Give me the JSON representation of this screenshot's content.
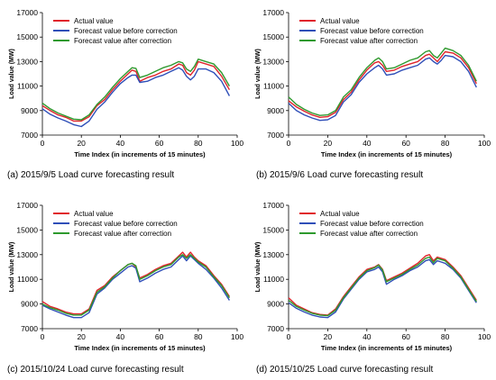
{
  "colors": {
    "actual": "#e0242b",
    "before": "#2f4fb8",
    "after": "#2e9a2e",
    "axis": "#000000"
  },
  "chart_data": [
    {
      "type": "line",
      "caption": "(a)  2015/9/5 Load curve forecasting result",
      "xlabel": "Time Index (in increments of 15 minutes)",
      "ylabel": "Load value (MW)",
      "xlim": [
        0,
        100
      ],
      "ylim": [
        7000,
        17000
      ],
      "xticks": [
        "0",
        "20",
        "40",
        "60",
        "80",
        "100"
      ],
      "yticks": [
        "7000",
        "9000",
        "11000",
        "13000",
        "15000",
        "17000"
      ],
      "legend": "top-left",
      "series": [
        {
          "name": "Actual value",
          "x": [
            0,
            4,
            8,
            12,
            16,
            20,
            24,
            28,
            32,
            36,
            40,
            44,
            46,
            48,
            50,
            54,
            58,
            62,
            66,
            70,
            72,
            74,
            76,
            78,
            80,
            84,
            88,
            92,
            96
          ],
          "y": [
            9400,
            9000,
            8650,
            8450,
            8150,
            8150,
            8500,
            9400,
            9900,
            10700,
            11400,
            12000,
            12300,
            12200,
            11400,
            11700,
            11900,
            12200,
            12400,
            12800,
            12700,
            12100,
            11900,
            12300,
            13000,
            12800,
            12600,
            11800,
            10700
          ]
        },
        {
          "name": "Forecast value before correction",
          "x": [
            0,
            4,
            8,
            12,
            16,
            20,
            24,
            28,
            32,
            36,
            40,
            44,
            46,
            48,
            50,
            54,
            58,
            62,
            66,
            70,
            72,
            74,
            76,
            78,
            80,
            84,
            88,
            92,
            96
          ],
          "y": [
            9150,
            8700,
            8400,
            8150,
            7850,
            7700,
            8150,
            9100,
            9700,
            10500,
            11200,
            11700,
            11900,
            11900,
            11300,
            11400,
            11700,
            11900,
            12200,
            12500,
            12300,
            11800,
            11500,
            11800,
            12400,
            12400,
            12100,
            11400,
            10200
          ]
        },
        {
          "name": "Forecast value after correction",
          "x": [
            0,
            4,
            8,
            12,
            16,
            20,
            24,
            28,
            32,
            36,
            40,
            44,
            46,
            48,
            50,
            54,
            58,
            62,
            66,
            70,
            72,
            74,
            76,
            78,
            80,
            84,
            88,
            92,
            96
          ],
          "y": [
            9600,
            9150,
            8800,
            8550,
            8300,
            8250,
            8650,
            9500,
            10100,
            10900,
            11600,
            12200,
            12500,
            12450,
            11700,
            11900,
            12200,
            12500,
            12700,
            13000,
            12900,
            12400,
            12200,
            12600,
            13200,
            13000,
            12800,
            12100,
            11000
          ]
        }
      ]
    },
    {
      "type": "line",
      "caption": "(b)  2015/9/6 Load curve forecasting result",
      "xlabel": "Time Index (in increments of 15 minutes)",
      "ylabel": "Load value (MW)",
      "xlim": [
        0,
        100
      ],
      "ylim": [
        7000,
        17000
      ],
      "xticks": [
        "0",
        "20",
        "40",
        "60",
        "80",
        "100"
      ],
      "yticks": [
        "7000",
        "9000",
        "11000",
        "13000",
        "15000",
        "17000"
      ],
      "legend": "top-left",
      "series": [
        {
          "name": "Actual value",
          "x": [
            0,
            4,
            8,
            12,
            16,
            20,
            24,
            28,
            32,
            36,
            40,
            44,
            46,
            48,
            50,
            54,
            58,
            62,
            66,
            70,
            72,
            74,
            76,
            78,
            80,
            84,
            88,
            92,
            96
          ],
          "y": [
            9800,
            9300,
            8950,
            8650,
            8450,
            8500,
            8850,
            9900,
            10500,
            11500,
            12300,
            12900,
            13000,
            12700,
            12200,
            12300,
            12600,
            12800,
            13000,
            13500,
            13600,
            13300,
            13000,
            13400,
            13800,
            13700,
            13300,
            12500,
            11200
          ]
        },
        {
          "name": "Forecast value before correction",
          "x": [
            0,
            4,
            8,
            12,
            16,
            20,
            24,
            28,
            32,
            36,
            40,
            44,
            46,
            48,
            50,
            54,
            58,
            62,
            66,
            70,
            72,
            74,
            76,
            78,
            80,
            84,
            88,
            92,
            96
          ],
          "y": [
            9600,
            9000,
            8650,
            8400,
            8200,
            8250,
            8600,
            9700,
            10300,
            11300,
            12000,
            12500,
            12700,
            12400,
            11900,
            12000,
            12300,
            12500,
            12700,
            13200,
            13300,
            13000,
            12800,
            13100,
            13500,
            13400,
            13000,
            12200,
            10900
          ]
        },
        {
          "name": "Forecast value after correction",
          "x": [
            0,
            4,
            8,
            12,
            16,
            20,
            24,
            28,
            32,
            36,
            40,
            44,
            46,
            48,
            50,
            54,
            58,
            62,
            66,
            70,
            72,
            74,
            76,
            78,
            80,
            84,
            88,
            92,
            96
          ],
          "y": [
            10100,
            9500,
            9100,
            8800,
            8600,
            8650,
            9000,
            10100,
            10700,
            11700,
            12500,
            13100,
            13300,
            13000,
            12400,
            12500,
            12800,
            13100,
            13300,
            13800,
            13900,
            13500,
            13300,
            13700,
            14100,
            13900,
            13500,
            12700,
            11400
          ]
        }
      ]
    },
    {
      "type": "line",
      "caption": "(c)  2015/10/24 Load curve forecasting result",
      "xlabel": "Time Index (in increments of 15 minutes)",
      "ylabel": "Load value (MW)",
      "xlim": [
        0,
        100
      ],
      "ylim": [
        7000,
        17000
      ],
      "xticks": [
        "0",
        "20",
        "40",
        "60",
        "80",
        "100"
      ],
      "yticks": [
        "7000",
        "9000",
        "11000",
        "13000",
        "15000",
        "17000"
      ],
      "legend": "top-left",
      "series": [
        {
          "name": "Actual value",
          "x": [
            0,
            4,
            8,
            12,
            16,
            20,
            24,
            28,
            32,
            36,
            40,
            44,
            46,
            48,
            50,
            54,
            58,
            62,
            66,
            70,
            72,
            74,
            76,
            78,
            80,
            84,
            88,
            92,
            96
          ],
          "y": [
            9200,
            8800,
            8600,
            8350,
            8200,
            8200,
            8600,
            10100,
            10500,
            11200,
            11700,
            12200,
            12300,
            12000,
            11100,
            11400,
            11800,
            12100,
            12300,
            12900,
            13200,
            12800,
            13200,
            12800,
            12500,
            12100,
            11300,
            10600,
            9600
          ]
        },
        {
          "name": "Forecast value before correction",
          "x": [
            0,
            4,
            8,
            12,
            16,
            20,
            24,
            28,
            32,
            36,
            40,
            44,
            46,
            48,
            50,
            54,
            58,
            62,
            66,
            70,
            72,
            74,
            76,
            78,
            80,
            84,
            88,
            92,
            96
          ],
          "y": [
            8900,
            8600,
            8350,
            8100,
            7900,
            7900,
            8300,
            9800,
            10300,
            11000,
            11500,
            12000,
            12100,
            11900,
            10800,
            11100,
            11500,
            11800,
            12000,
            12600,
            12900,
            12500,
            12900,
            12600,
            12300,
            11800,
            11100,
            10300,
            9300
          ]
        },
        {
          "name": "Forecast value after correction",
          "x": [
            0,
            4,
            8,
            12,
            16,
            20,
            24,
            28,
            32,
            36,
            40,
            44,
            46,
            48,
            50,
            54,
            58,
            62,
            66,
            70,
            72,
            74,
            76,
            78,
            80,
            84,
            88,
            92,
            96
          ],
          "y": [
            9000,
            8700,
            8500,
            8250,
            8100,
            8100,
            8500,
            9950,
            10400,
            11100,
            11700,
            12200,
            12300,
            12100,
            11000,
            11300,
            11700,
            12000,
            12200,
            12800,
            13000,
            12700,
            13000,
            12700,
            12400,
            12000,
            11200,
            10500,
            9500
          ]
        }
      ]
    },
    {
      "type": "line",
      "caption": "(d)  2015/10/25 Load curve forecasting result",
      "xlabel": "Time Index (in increments of 15 minutes)",
      "ylabel": "Load value (MW)",
      "xlim": [
        0,
        100
      ],
      "ylim": [
        7000,
        17000
      ],
      "xticks": [
        "0",
        "20",
        "40",
        "60",
        "80",
        "100"
      ],
      "yticks": [
        "7000",
        "9000",
        "11000",
        "13000",
        "15000",
        "17000"
      ],
      "legend": "top-left",
      "series": [
        {
          "name": "Actual value",
          "x": [
            0,
            4,
            8,
            12,
            16,
            20,
            24,
            28,
            32,
            36,
            40,
            44,
            46,
            48,
            50,
            54,
            58,
            62,
            66,
            70,
            72,
            74,
            76,
            78,
            80,
            84,
            88,
            92,
            96
          ],
          "y": [
            9500,
            8900,
            8600,
            8300,
            8150,
            8100,
            8600,
            9600,
            10400,
            11200,
            11800,
            12000,
            12200,
            11800,
            10900,
            11200,
            11500,
            11900,
            12300,
            12900,
            13000,
            12500,
            12800,
            12700,
            12600,
            12000,
            11300,
            10300,
            9300
          ]
        },
        {
          "name": "Forecast value before correction",
          "x": [
            0,
            4,
            8,
            12,
            16,
            20,
            24,
            28,
            32,
            36,
            40,
            44,
            46,
            48,
            50,
            54,
            58,
            62,
            66,
            70,
            72,
            74,
            76,
            78,
            80,
            84,
            88,
            92,
            96
          ],
          "y": [
            9100,
            8650,
            8350,
            8100,
            7950,
            7900,
            8350,
            9400,
            10200,
            11000,
            11600,
            11800,
            12000,
            11600,
            10600,
            11000,
            11300,
            11700,
            12000,
            12500,
            12600,
            12200,
            12500,
            12400,
            12300,
            11800,
            11100,
            10100,
            9100
          ]
        },
        {
          "name": "Forecast value after correction",
          "x": [
            0,
            4,
            8,
            12,
            16,
            20,
            24,
            28,
            32,
            36,
            40,
            44,
            46,
            48,
            50,
            54,
            58,
            62,
            66,
            70,
            72,
            74,
            76,
            78,
            80,
            84,
            88,
            92,
            96
          ],
          "y": [
            9300,
            8800,
            8500,
            8250,
            8100,
            8050,
            8500,
            9500,
            10300,
            11100,
            11700,
            11950,
            12150,
            11750,
            10800,
            11100,
            11400,
            11800,
            12150,
            12700,
            12800,
            12350,
            12700,
            12600,
            12500,
            11900,
            11200,
            10200,
            9200
          ]
        }
      ]
    }
  ]
}
